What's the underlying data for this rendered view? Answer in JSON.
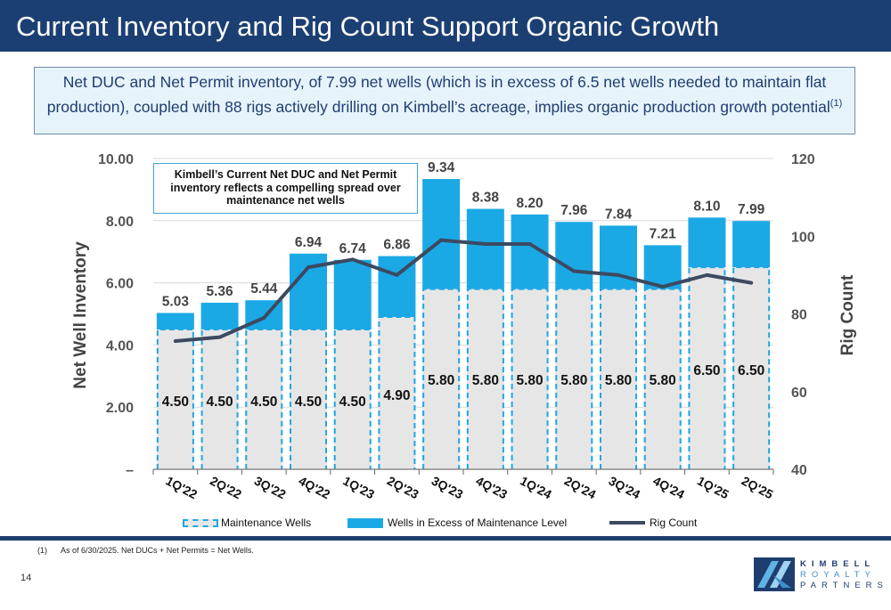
{
  "header": {
    "title": "Current Inventory and Rig Count Support Organic Growth"
  },
  "callout": {
    "text": "Net DUC and Net Permit inventory, of 7.99 net wells (which is in excess of 6.5 net wells needed to maintain flat production), coupled with 88 rigs actively drilling on Kimbell’s acreage, implies organic production growth potential",
    "footnote_ref": "(1)"
  },
  "chart_data": {
    "type": "bar",
    "categories": [
      "1Q'22",
      "2Q'22",
      "3Q'22",
      "4Q'22",
      "1Q'23",
      "2Q'23",
      "3Q'23",
      "4Q'23",
      "1Q'24",
      "2Q'24",
      "3Q'24",
      "4Q'24",
      "1Q'25",
      "2Q'25"
    ],
    "series": [
      {
        "name": "Maintenance Wells",
        "values": [
          4.5,
          4.5,
          4.5,
          4.5,
          4.5,
          4.9,
          5.8,
          5.8,
          5.8,
          5.8,
          5.8,
          5.8,
          6.5,
          6.5
        ]
      },
      {
        "name": "Wells in Excess of Maintenance Level",
        "values": [
          0.53,
          0.86,
          0.94,
          2.44,
          2.24,
          1.96,
          3.54,
          2.58,
          2.4,
          2.16,
          2.04,
          1.41,
          1.6,
          1.49
        ]
      },
      {
        "name": "Rig Count",
        "axis": "right",
        "values": [
          73,
          74,
          79,
          92,
          94,
          90,
          99,
          98,
          98,
          91,
          90,
          87,
          90,
          88
        ]
      }
    ],
    "maintenance_labels": [
      "4.50",
      "4.50",
      "4.50",
      "4.50",
      "4.50",
      "4.90",
      "5.80",
      "5.80",
      "5.80",
      "5.80",
      "5.80",
      "5.80",
      "6.50",
      "6.50"
    ],
    "total_labels": [
      "5.03",
      "5.36",
      "5.44",
      "6.94",
      "6.74",
      "6.86",
      "9.34",
      "8.38",
      "8.20",
      "7.96",
      "7.84",
      "7.21",
      "8.10",
      "7.99"
    ],
    "ylabel": "Net Well Inventory",
    "ylabel_right": "Rig Count",
    "ylim": [
      0,
      10
    ],
    "ylim_right": [
      40,
      120
    ],
    "yticks": [
      "–",
      "2.00",
      "4.00",
      "6.00",
      "8.00",
      "10.00"
    ],
    "yticks_right": [
      "40",
      "60",
      "80",
      "100",
      "120"
    ],
    "annotation": "Kimbell’s Current Net DUC and Net Permit inventory reflects a compelling spread over maintenance net wells",
    "colors": {
      "maintenance": "#e6e6e6",
      "maintenance_border": "#1fa6e3",
      "excess": "#1ba9e6",
      "rig_line": "#3c4a61"
    }
  },
  "legend": {
    "maintenance": "Maintenance Wells",
    "excess": "Wells in Excess of Maintenance Level",
    "rig": "Rig Count"
  },
  "footnote": {
    "number": "(1)",
    "text": "As of 6/30/2025. Net DUCs + Net Permits = Net Wells."
  },
  "page_number": "14",
  "logo": {
    "line1": "KIMBELL",
    "line2": "ROYALTY",
    "line3": "PARTNERS"
  },
  "colors": {
    "title_bar": "#1c3f73",
    "callout_bg": "#e7f3fb",
    "accent_text": "#1f3e70"
  }
}
